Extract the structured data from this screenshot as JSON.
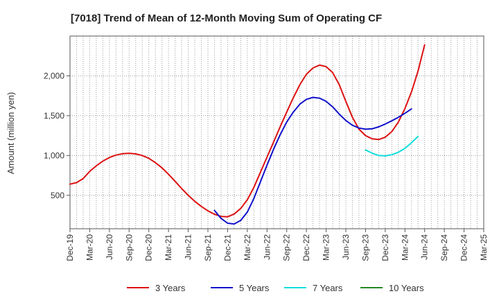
{
  "chart_data": {
    "type": "line",
    "title": "[7018]  Trend of Mean of 12-Month Moving Sum of Operating CF",
    "xlabel": "",
    "ylabel": "Amount (million yen)",
    "ylim": [
      80,
      2500
    ],
    "yticks": [
      500,
      1000,
      1500,
      2000
    ],
    "ytick_labels": [
      "500",
      "1,000",
      "1,500",
      "2,000"
    ],
    "grid": true,
    "legend_position": "bottom",
    "x_tick_labels": [
      "Dec-19",
      "Mar-20",
      "Jun-20",
      "Sep-20",
      "Dec-20",
      "Mar-21",
      "Jun-21",
      "Sep-21",
      "Dec-21",
      "Mar-22",
      "Jun-22",
      "Sep-22",
      "Dec-22",
      "Mar-23",
      "Jun-23",
      "Sep-23",
      "Dec-23",
      "Mar-24",
      "Jun-24",
      "Sep-24",
      "Dec-24",
      "Mar-25"
    ],
    "x_start": "Dec-19",
    "num_months": 63,
    "series": [
      {
        "name": "3 Years",
        "color": "#dd1111",
        "start_index": 0,
        "values": [
          640,
          660,
          710,
          800,
          870,
          930,
          975,
          1005,
          1022,
          1028,
          1020,
          1000,
          965,
          910,
          845,
          765,
          675,
          585,
          500,
          425,
          360,
          305,
          262,
          235,
          230,
          265,
          335,
          445,
          600,
          790,
          980,
          1170,
          1360,
          1545,
          1725,
          1890,
          2020,
          2100,
          2135,
          2115,
          2040,
          1890,
          1680,
          1480,
          1330,
          1250,
          1210,
          1200,
          1230,
          1300,
          1420,
          1590,
          1800,
          2060,
          2390
        ]
      },
      {
        "name": "5 Years",
        "color": "#1111cc",
        "start_index": 22,
        "values": [
          310,
          210,
          150,
          140,
          185,
          290,
          460,
          670,
          880,
          1080,
          1260,
          1420,
          1545,
          1645,
          1705,
          1730,
          1720,
          1680,
          1610,
          1520,
          1440,
          1380,
          1345,
          1330,
          1335,
          1360,
          1395,
          1435,
          1480,
          1530,
          1585
        ]
      },
      {
        "name": "7 Years",
        "color": "#11dddd",
        "start_index": 45,
        "values": [
          1070,
          1030,
          1000,
          995,
          1010,
          1040,
          1090,
          1160,
          1240
        ]
      },
      {
        "name": "10 Years",
        "color": "#228822",
        "start_index": 0,
        "values": []
      }
    ]
  }
}
